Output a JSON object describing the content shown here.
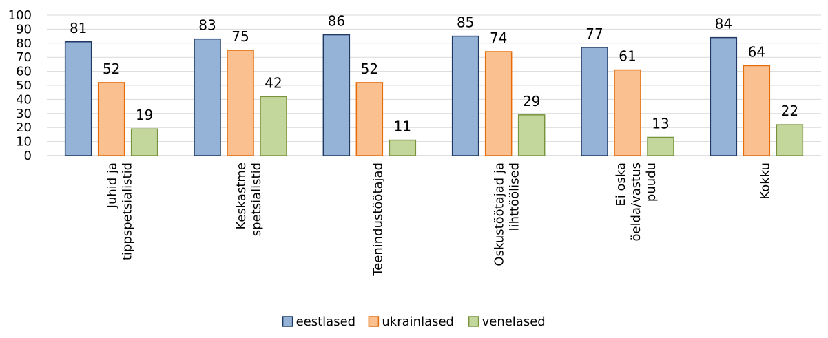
{
  "chart_data": {
    "type": "bar",
    "title": "",
    "xlabel": "",
    "ylabel": "",
    "ylim": [
      0,
      100
    ],
    "yticks": [
      0,
      10,
      20,
      30,
      40,
      50,
      60,
      70,
      80,
      90,
      100
    ],
    "grid": true,
    "legend_position": "bottom",
    "categories": [
      [
        "Juhid ja",
        "tippspetsialistid"
      ],
      [
        "Keskastme",
        "spetsialistid"
      ],
      [
        "Teenindustöötajad"
      ],
      [
        "Oskustöötajad ja",
        "lihttöölised"
      ],
      [
        "Ei oska",
        "öelda/vastus",
        "puudu"
      ],
      [
        "Kokku"
      ]
    ],
    "series": [
      {
        "name": "eestlased",
        "values": [
          81,
          83,
          86,
          85,
          77,
          84
        ],
        "fill": "#95b3d7",
        "stroke": "#1f3864"
      },
      {
        "name": "ukrainlased",
        "values": [
          52,
          75,
          52,
          74,
          61,
          64
        ],
        "fill": "#fac090",
        "stroke": "#e46c0a"
      },
      {
        "name": "venelased",
        "values": [
          19,
          42,
          11,
          29,
          13,
          22
        ],
        "fill": "#c3d69b",
        "stroke": "#77933c"
      }
    ]
  }
}
